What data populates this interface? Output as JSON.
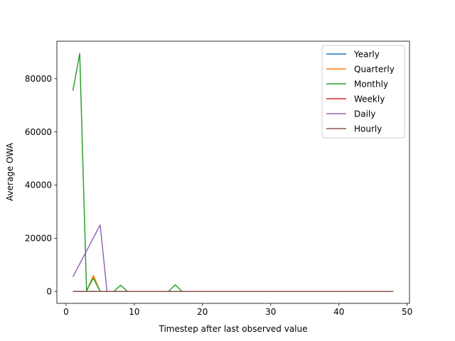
{
  "chart_data": {
    "type": "line",
    "title": "",
    "xlabel": "Timestep after last observed value",
    "ylabel": "Average OWA",
    "xlim": [
      -1.35,
      50.35
    ],
    "ylim": [
      -4480,
      94100
    ],
    "xticks": [
      0,
      10,
      20,
      30,
      40,
      50
    ],
    "yticks": [
      0,
      20000,
      40000,
      60000,
      80000
    ],
    "grid": false,
    "legend_position": "top-right",
    "series": [
      {
        "name": "Yearly",
        "color": "#1f77b4",
        "points": [
          [
            1,
            10
          ],
          [
            2,
            20
          ],
          [
            3,
            10
          ],
          [
            4,
            30
          ],
          [
            5,
            10
          ],
          [
            6,
            10
          ]
        ]
      },
      {
        "name": "Quarterly",
        "color": "#ff7f0e",
        "points": [
          [
            1,
            0
          ],
          [
            2,
            0
          ],
          [
            3,
            0
          ],
          [
            4,
            6000
          ],
          [
            5,
            0
          ],
          [
            6,
            0
          ],
          [
            7,
            0
          ],
          [
            8,
            0
          ]
        ]
      },
      {
        "name": "Monthly",
        "color": "#2ca02c",
        "points": [
          [
            1,
            75500
          ],
          [
            2,
            89500
          ],
          [
            3,
            300
          ],
          [
            4,
            5000
          ],
          [
            5,
            0
          ],
          [
            6,
            0
          ],
          [
            7,
            0
          ],
          [
            8,
            2300
          ],
          [
            9,
            0
          ],
          [
            10,
            0
          ],
          [
            11,
            0
          ],
          [
            12,
            0
          ],
          [
            13,
            0
          ],
          [
            14,
            0
          ],
          [
            15,
            0
          ],
          [
            16,
            2500
          ],
          [
            17,
            0
          ],
          [
            18,
            0
          ]
        ]
      },
      {
        "name": "Weekly",
        "color": "#d62728",
        "points": [
          [
            1,
            0
          ],
          [
            2,
            0
          ],
          [
            3,
            0
          ],
          [
            4,
            0
          ],
          [
            5,
            0
          ],
          [
            6,
            0
          ],
          [
            7,
            0
          ],
          [
            8,
            0
          ],
          [
            9,
            0
          ],
          [
            10,
            0
          ],
          [
            11,
            0
          ],
          [
            12,
            0
          ],
          [
            13,
            0
          ]
        ]
      },
      {
        "name": "Daily",
        "color": "#9467bd",
        "points": [
          [
            1,
            5500
          ],
          [
            5,
            25000
          ],
          [
            6,
            0
          ],
          [
            7,
            0
          ],
          [
            8,
            0
          ],
          [
            9,
            0
          ],
          [
            10,
            0
          ],
          [
            11,
            0
          ],
          [
            12,
            0
          ],
          [
            13,
            0
          ],
          [
            14,
            0
          ]
        ]
      },
      {
        "name": "Hourly",
        "color": "#8c564b",
        "points": [
          [
            1,
            0
          ],
          [
            10,
            0
          ],
          [
            20,
            0
          ],
          [
            30,
            0
          ],
          [
            40,
            0
          ],
          [
            48,
            0
          ]
        ]
      }
    ]
  }
}
